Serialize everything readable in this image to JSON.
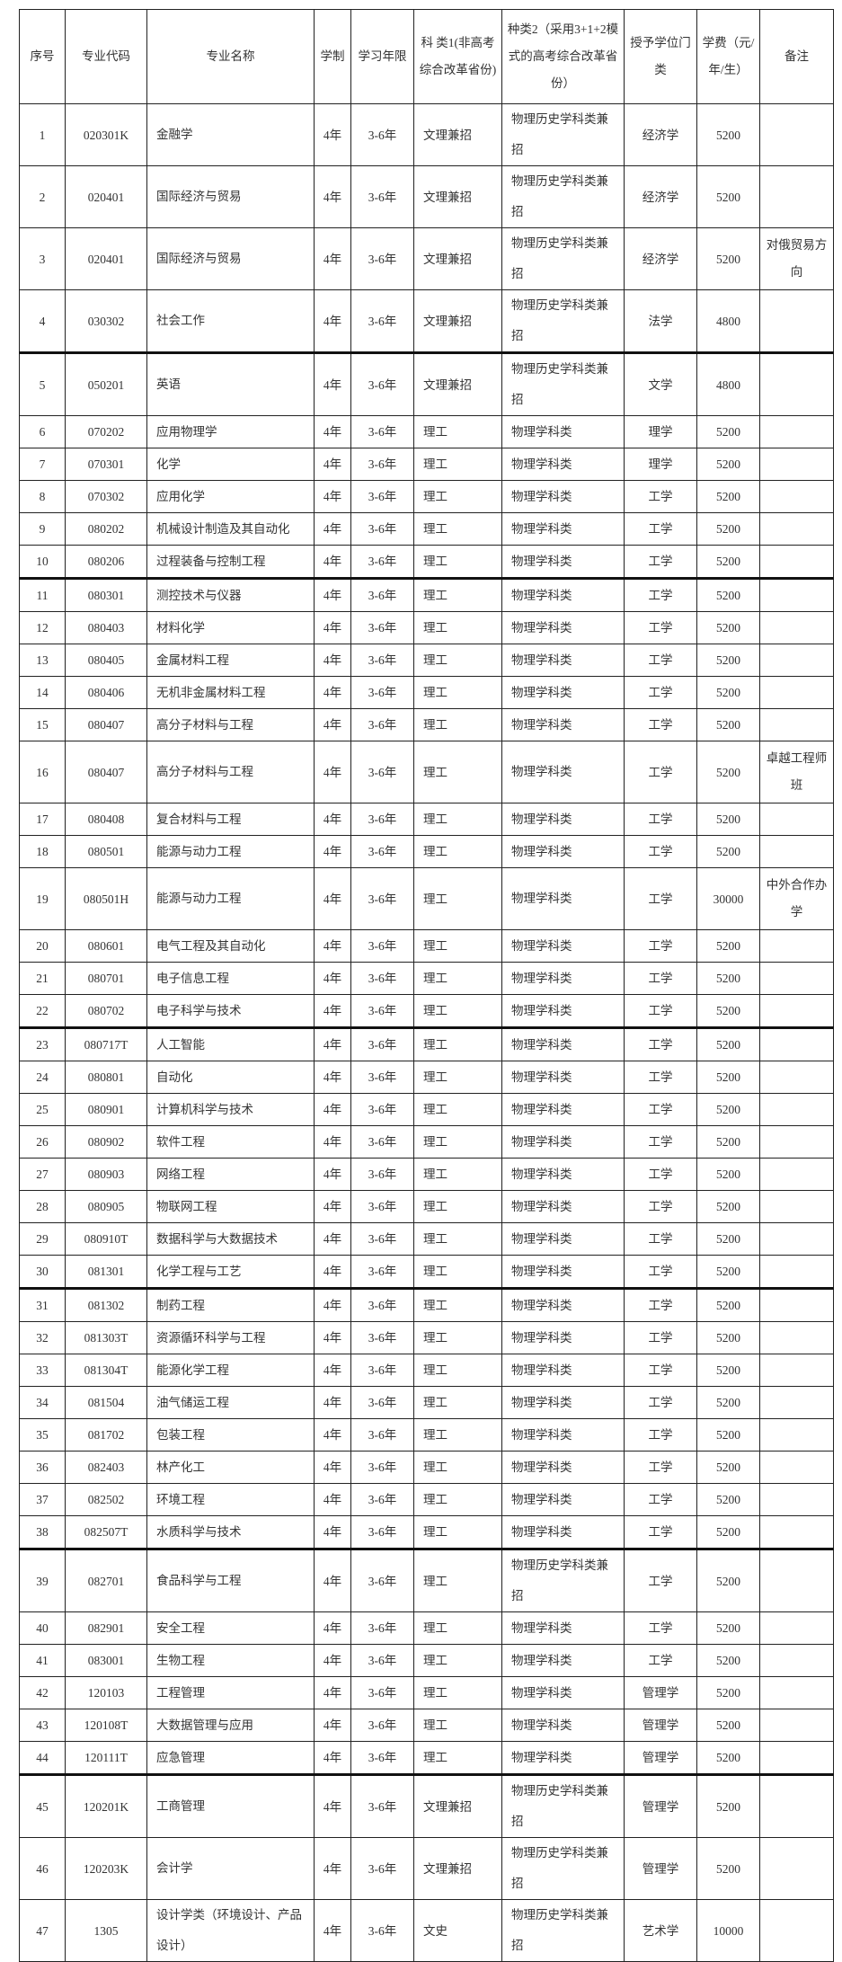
{
  "header": [
    "序号",
    "专业代码",
    "专业名称",
    "学制",
    "学习年限",
    "科 类1(非高考综合改革省份)",
    "种类2（采用3+1+2模式的高考综合改革省份）",
    "授予学位门类",
    "学费（元/年/生）",
    "备注"
  ],
  "rows": [
    [
      "1",
      "020301K",
      "金融学",
      "4年",
      "3-6年",
      "文理兼招",
      "物理历史学科类兼招",
      "经济学",
      "5200",
      ""
    ],
    [
      "2",
      "020401",
      "国际经济与贸易",
      "4年",
      "3-6年",
      "文理兼招",
      "物理历史学科类兼招",
      "经济学",
      "5200",
      ""
    ],
    [
      "3",
      "020401",
      "国际经济与贸易",
      "4年",
      "3-6年",
      "文理兼招",
      "物理历史学科类兼招",
      "经济学",
      "5200",
      "对俄贸易方向"
    ],
    [
      "4",
      "030302",
      "社会工作",
      "4年",
      "3-6年",
      "文理兼招",
      "物理历史学科类兼招",
      "法学",
      "4800",
      ""
    ],
    [
      "5",
      "050201",
      "英语",
      "4年",
      "3-6年",
      "文理兼招",
      "物理历史学科类兼招",
      "文学",
      "4800",
      ""
    ],
    [
      "6",
      "070202",
      "应用物理学",
      "4年",
      "3-6年",
      "理工",
      "物理学科类",
      "理学",
      "5200",
      ""
    ],
    [
      "7",
      "070301",
      "化学",
      "4年",
      "3-6年",
      "理工",
      "物理学科类",
      "理学",
      "5200",
      ""
    ],
    [
      "8",
      "070302",
      "应用化学",
      "4年",
      "3-6年",
      "理工",
      "物理学科类",
      "工学",
      "5200",
      ""
    ],
    [
      "9",
      "080202",
      "机械设计制造及其自动化",
      "4年",
      "3-6年",
      "理工",
      "物理学科类",
      "工学",
      "5200",
      ""
    ],
    [
      "10",
      "080206",
      "过程装备与控制工程",
      "4年",
      "3-6年",
      "理工",
      "物理学科类",
      "工学",
      "5200",
      ""
    ],
    [
      "11",
      "080301",
      "测控技术与仪器",
      "4年",
      "3-6年",
      "理工",
      "物理学科类",
      "工学",
      "5200",
      ""
    ],
    [
      "12",
      "080403",
      "材料化学",
      "4年",
      "3-6年",
      "理工",
      "物理学科类",
      "工学",
      "5200",
      ""
    ],
    [
      "13",
      "080405",
      "金属材料工程",
      "4年",
      "3-6年",
      "理工",
      "物理学科类",
      "工学",
      "5200",
      ""
    ],
    [
      "14",
      "080406",
      "无机非金属材料工程",
      "4年",
      "3-6年",
      "理工",
      "物理学科类",
      "工学",
      "5200",
      ""
    ],
    [
      "15",
      "080407",
      "高分子材料与工程",
      "4年",
      "3-6年",
      "理工",
      "物理学科类",
      "工学",
      "5200",
      ""
    ],
    [
      "16",
      "080407",
      "高分子材料与工程",
      "4年",
      "3-6年",
      "理工",
      "物理学科类",
      "工学",
      "5200",
      "卓越工程师班"
    ],
    [
      "17",
      "080408",
      "复合材料与工程",
      "4年",
      "3-6年",
      "理工",
      "物理学科类",
      "工学",
      "5200",
      ""
    ],
    [
      "18",
      "080501",
      "能源与动力工程",
      "4年",
      "3-6年",
      "理工",
      "物理学科类",
      "工学",
      "5200",
      ""
    ],
    [
      "19",
      "080501H",
      "能源与动力工程",
      "4年",
      "3-6年",
      "理工",
      "物理学科类",
      "工学",
      "30000",
      "中外合作办学"
    ],
    [
      "20",
      "080601",
      "电气工程及其自动化",
      "4年",
      "3-6年",
      "理工",
      "物理学科类",
      "工学",
      "5200",
      ""
    ],
    [
      "21",
      "080701",
      "电子信息工程",
      "4年",
      "3-6年",
      "理工",
      "物理学科类",
      "工学",
      "5200",
      ""
    ],
    [
      "22",
      "080702",
      "电子科学与技术",
      "4年",
      "3-6年",
      "理工",
      "物理学科类",
      "工学",
      "5200",
      ""
    ],
    [
      "23",
      "080717T",
      "人工智能",
      "4年",
      "3-6年",
      "理工",
      "物理学科类",
      "工学",
      "5200",
      ""
    ],
    [
      "24",
      "080801",
      "自动化",
      "4年",
      "3-6年",
      "理工",
      "物理学科类",
      "工学",
      "5200",
      ""
    ],
    [
      "25",
      "080901",
      "计算机科学与技术",
      "4年",
      "3-6年",
      "理工",
      "物理学科类",
      "工学",
      "5200",
      ""
    ],
    [
      "26",
      "080902",
      "软件工程",
      "4年",
      "3-6年",
      "理工",
      "物理学科类",
      "工学",
      "5200",
      ""
    ],
    [
      "27",
      "080903",
      "网络工程",
      "4年",
      "3-6年",
      "理工",
      "物理学科类",
      "工学",
      "5200",
      ""
    ],
    [
      "28",
      "080905",
      "物联网工程",
      "4年",
      "3-6年",
      "理工",
      "物理学科类",
      "工学",
      "5200",
      ""
    ],
    [
      "29",
      "080910T",
      "数据科学与大数据技术",
      "4年",
      "3-6年",
      "理工",
      "物理学科类",
      "工学",
      "5200",
      ""
    ],
    [
      "30",
      "081301",
      "化学工程与工艺",
      "4年",
      "3-6年",
      "理工",
      "物理学科类",
      "工学",
      "5200",
      ""
    ],
    [
      "31",
      "081302",
      "制药工程",
      "4年",
      "3-6年",
      "理工",
      "物理学科类",
      "工学",
      "5200",
      ""
    ],
    [
      "32",
      "081303T",
      "资源循环科学与工程",
      "4年",
      "3-6年",
      "理工",
      "物理学科类",
      "工学",
      "5200",
      ""
    ],
    [
      "33",
      "081304T",
      "能源化学工程",
      "4年",
      "3-6年",
      "理工",
      "物理学科类",
      "工学",
      "5200",
      ""
    ],
    [
      "34",
      "081504",
      "油气储运工程",
      "4年",
      "3-6年",
      "理工",
      "物理学科类",
      "工学",
      "5200",
      ""
    ],
    [
      "35",
      "081702",
      "包装工程",
      "4年",
      "3-6年",
      "理工",
      "物理学科类",
      "工学",
      "5200",
      ""
    ],
    [
      "36",
      "082403",
      "林产化工",
      "4年",
      "3-6年",
      "理工",
      "物理学科类",
      "工学",
      "5200",
      ""
    ],
    [
      "37",
      "082502",
      "环境工程",
      "4年",
      "3-6年",
      "理工",
      "物理学科类",
      "工学",
      "5200",
      ""
    ],
    [
      "38",
      "082507T",
      "水质科学与技术",
      "4年",
      "3-6年",
      "理工",
      "物理学科类",
      "工学",
      "5200",
      ""
    ],
    [
      "39",
      "082701",
      "食品科学与工程",
      "4年",
      "3-6年",
      "理工",
      "物理历史学科类兼招",
      "工学",
      "5200",
      ""
    ],
    [
      "40",
      "082901",
      "安全工程",
      "4年",
      "3-6年",
      "理工",
      "物理学科类",
      "工学",
      "5200",
      ""
    ],
    [
      "41",
      "083001",
      "生物工程",
      "4年",
      "3-6年",
      "理工",
      "物理学科类",
      "工学",
      "5200",
      ""
    ],
    [
      "42",
      "120103",
      "工程管理",
      "4年",
      "3-6年",
      "理工",
      "物理学科类",
      "管理学",
      "5200",
      ""
    ],
    [
      "43",
      "120108T",
      "大数据管理与应用",
      "4年",
      "3-6年",
      "理工",
      "物理学科类",
      "管理学",
      "5200",
      ""
    ],
    [
      "44",
      "120111T",
      "应急管理",
      "4年",
      "3-6年",
      "理工",
      "物理学科类",
      "管理学",
      "5200",
      ""
    ],
    [
      "45",
      "120201K",
      "工商管理",
      "4年",
      "3-6年",
      "文理兼招",
      "物理历史学科类兼招",
      "管理学",
      "5200",
      ""
    ],
    [
      "46",
      "120203K",
      "会计学",
      "4年",
      "3-6年",
      "文理兼招",
      "物理历史学科类兼招",
      "管理学",
      "5200",
      ""
    ],
    [
      "47",
      "1305",
      "设计学类（环境设计、产品设计）",
      "4年",
      "3-6年",
      "文史",
      "物理历史学科类兼招",
      "艺术学",
      "10000",
      ""
    ]
  ]
}
